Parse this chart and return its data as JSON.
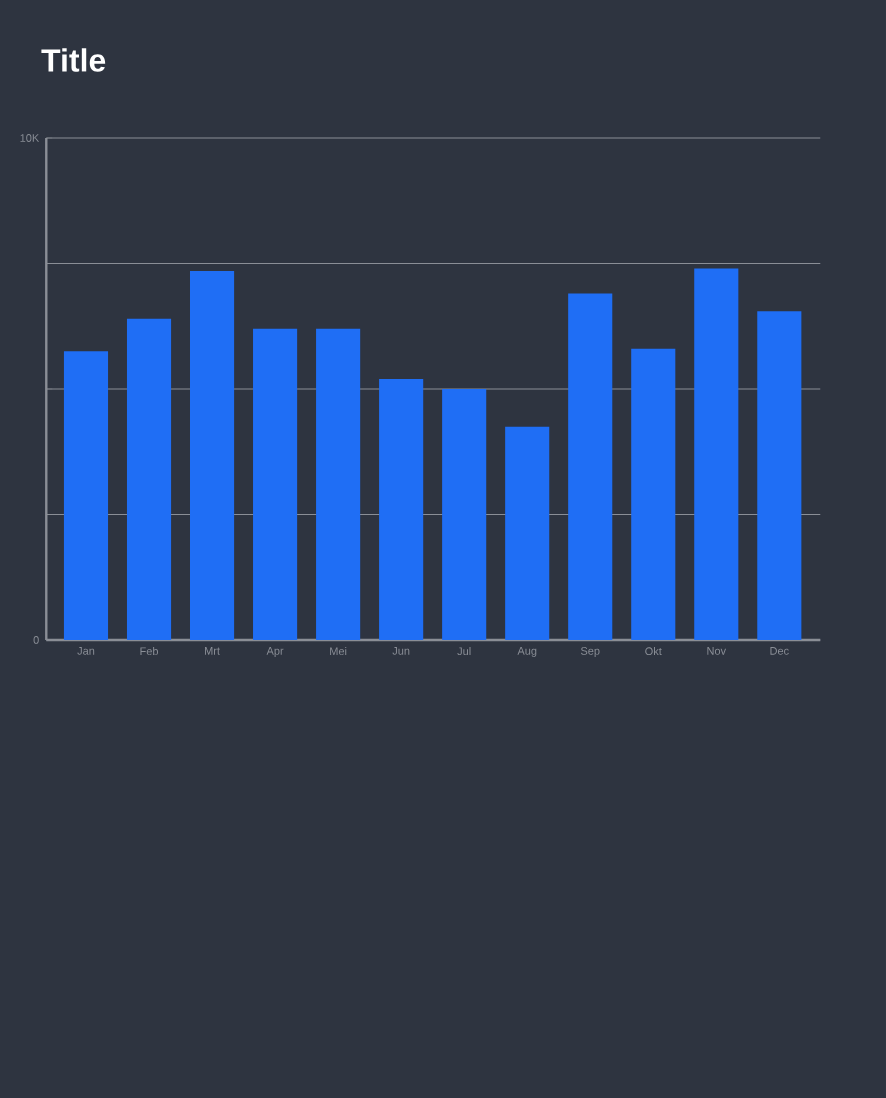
{
  "chart_data": {
    "type": "bar",
    "title": "Title",
    "categories": [
      "Jan",
      "Feb",
      "Mrt",
      "Apr",
      "Mei",
      "Jun",
      "Jul",
      "Aug",
      "Sep",
      "Okt",
      "Nov",
      "Dec"
    ],
    "values": [
      5750,
      6400,
      7350,
      6200,
      6200,
      5200,
      5000,
      4250,
      6900,
      5800,
      7400,
      6550
    ],
    "color": "#1f6ef5",
    "ylim": [
      0,
      10000
    ],
    "yticks": [
      0,
      {
        "value": 2500,
        "label": null
      },
      {
        "value": 5000,
        "label": null
      },
      {
        "value": 7500,
        "label": null
      },
      {
        "value": 10000,
        "label": "10K"
      }
    ],
    "grid": "y"
  }
}
